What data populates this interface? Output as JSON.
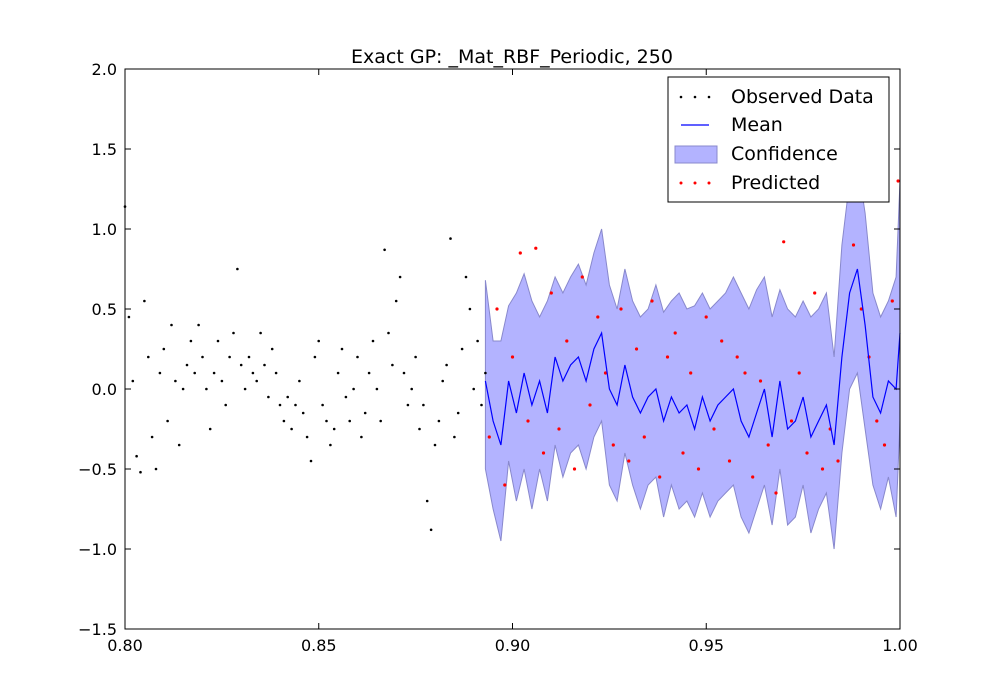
{
  "chart_data": {
    "type": "scatter",
    "title": "Exact GP: _Mat_RBF_Periodic, 250",
    "xlabel": "",
    "ylabel": "",
    "xlim": [
      0.8,
      1.0
    ],
    "ylim": [
      -1.5,
      2.0
    ],
    "x_ticks": [
      "0.80",
      "0.85",
      "0.90",
      "0.95",
      "1.00"
    ],
    "y_ticks": [
      "−1.5",
      "−1.0",
      "−0.5",
      "0.0",
      "0.5",
      "1.0",
      "1.5",
      "2.0"
    ],
    "grid": false,
    "legend_position": "top-right",
    "series": [
      {
        "name": "Observed Data",
        "kind": "points",
        "color": "#000000",
        "x": [
          0.8,
          0.801,
          0.802,
          0.803,
          0.804,
          0.805,
          0.806,
          0.807,
          0.808,
          0.809,
          0.81,
          0.811,
          0.812,
          0.813,
          0.814,
          0.815,
          0.816,
          0.817,
          0.818,
          0.819,
          0.82,
          0.821,
          0.822,
          0.823,
          0.824,
          0.825,
          0.826,
          0.827,
          0.828,
          0.829,
          0.83,
          0.831,
          0.832,
          0.833,
          0.834,
          0.835,
          0.836,
          0.837,
          0.838,
          0.839,
          0.84,
          0.841,
          0.842,
          0.843,
          0.844,
          0.845,
          0.846,
          0.847,
          0.848,
          0.849,
          0.85,
          0.851,
          0.852,
          0.853,
          0.854,
          0.855,
          0.856,
          0.857,
          0.858,
          0.859,
          0.86,
          0.861,
          0.862,
          0.863,
          0.864,
          0.865,
          0.866,
          0.867,
          0.868,
          0.869,
          0.87,
          0.871,
          0.872,
          0.873,
          0.874,
          0.875,
          0.876,
          0.877,
          0.878,
          0.879,
          0.88,
          0.881,
          0.882,
          0.883,
          0.884,
          0.885,
          0.886,
          0.887,
          0.888,
          0.889,
          0.89,
          0.891,
          0.892,
          0.893
        ],
        "y": [
          1.14,
          0.45,
          0.05,
          -0.42,
          -0.52,
          0.55,
          0.2,
          -0.3,
          -0.5,
          0.1,
          0.25,
          -0.2,
          0.4,
          0.05,
          -0.35,
          0.0,
          0.15,
          0.3,
          0.1,
          0.4,
          0.2,
          0.0,
          -0.25,
          0.1,
          0.3,
          0.05,
          -0.1,
          0.2,
          0.35,
          0.75,
          0.15,
          0.0,
          0.2,
          0.1,
          0.05,
          0.35,
          0.15,
          -0.05,
          0.25,
          0.1,
          -0.1,
          -0.2,
          -0.05,
          -0.25,
          -0.1,
          0.05,
          -0.15,
          -0.3,
          -0.45,
          0.2,
          0.3,
          -0.1,
          -0.2,
          -0.35,
          -0.25,
          0.1,
          0.25,
          -0.05,
          -0.2,
          0.0,
          0.2,
          -0.3,
          -0.15,
          0.1,
          0.3,
          0.0,
          -0.2,
          0.87,
          0.35,
          0.15,
          0.55,
          0.7,
          0.1,
          -0.1,
          0.0,
          0.2,
          -0.25,
          -0.1,
          -0.7,
          -0.88,
          -0.35,
          -0.2,
          0.05,
          0.15,
          0.94,
          -0.3,
          -0.15,
          0.25,
          0.7,
          0.5,
          0.0,
          0.3,
          -0.1,
          0.1
        ]
      },
      {
        "name": "Mean",
        "kind": "line",
        "color": "#0000ff",
        "x": [
          0.893,
          0.895,
          0.897,
          0.899,
          0.901,
          0.903,
          0.905,
          0.907,
          0.909,
          0.911,
          0.913,
          0.915,
          0.917,
          0.919,
          0.921,
          0.923,
          0.925,
          0.927,
          0.929,
          0.931,
          0.933,
          0.935,
          0.937,
          0.939,
          0.941,
          0.943,
          0.945,
          0.947,
          0.949,
          0.951,
          0.953,
          0.955,
          0.957,
          0.959,
          0.961,
          0.963,
          0.965,
          0.967,
          0.969,
          0.971,
          0.973,
          0.975,
          0.977,
          0.979,
          0.981,
          0.983,
          0.985,
          0.987,
          0.989,
          0.991,
          0.993,
          0.995,
          0.997,
          0.999,
          1.0
        ],
        "y": [
          0.05,
          -0.2,
          -0.35,
          0.05,
          -0.15,
          0.1,
          -0.1,
          0.05,
          -0.15,
          0.2,
          0.05,
          0.15,
          0.2,
          0.05,
          0.25,
          0.35,
          0.0,
          -0.1,
          0.15,
          -0.05,
          -0.15,
          -0.05,
          0.0,
          -0.2,
          -0.05,
          -0.15,
          -0.1,
          -0.25,
          -0.05,
          -0.2,
          -0.1,
          -0.05,
          0.0,
          -0.2,
          -0.3,
          -0.15,
          0.0,
          -0.3,
          0.05,
          -0.25,
          -0.2,
          -0.05,
          -0.3,
          -0.2,
          -0.1,
          -0.35,
          0.2,
          0.6,
          0.75,
          0.4,
          -0.05,
          -0.15,
          0.05,
          0.0,
          0.35
        ]
      },
      {
        "name": "Confidence",
        "kind": "band",
        "color": "#b3b3ff",
        "x": [
          0.893,
          0.895,
          0.897,
          0.899,
          0.901,
          0.903,
          0.905,
          0.907,
          0.909,
          0.911,
          0.913,
          0.915,
          0.917,
          0.919,
          0.921,
          0.923,
          0.925,
          0.927,
          0.929,
          0.931,
          0.933,
          0.935,
          0.937,
          0.939,
          0.941,
          0.943,
          0.945,
          0.947,
          0.949,
          0.951,
          0.953,
          0.955,
          0.957,
          0.959,
          0.961,
          0.963,
          0.965,
          0.967,
          0.969,
          0.971,
          0.973,
          0.975,
          0.977,
          0.979,
          0.981,
          0.983,
          0.985,
          0.987,
          0.989,
          0.991,
          0.993,
          0.995,
          0.997,
          0.999,
          1.0
        ],
        "upper": [
          0.68,
          0.3,
          0.3,
          0.52,
          0.6,
          0.72,
          0.55,
          0.45,
          0.55,
          0.7,
          0.6,
          0.7,
          0.78,
          0.65,
          0.85,
          1.0,
          0.65,
          0.5,
          0.75,
          0.55,
          0.45,
          0.5,
          0.65,
          0.48,
          0.55,
          0.6,
          0.5,
          0.52,
          0.6,
          0.5,
          0.55,
          0.6,
          0.7,
          0.6,
          0.5,
          0.62,
          0.7,
          0.45,
          0.62,
          0.5,
          0.45,
          0.55,
          0.45,
          0.5,
          0.6,
          0.2,
          0.9,
          1.3,
          1.42,
          1.1,
          0.6,
          0.45,
          0.55,
          0.7,
          1.3
        ],
        "lower": [
          -0.5,
          -0.75,
          -0.95,
          -0.45,
          -0.7,
          -0.5,
          -0.75,
          -0.5,
          -0.7,
          -0.35,
          -0.55,
          -0.4,
          -0.35,
          -0.5,
          -0.3,
          -0.2,
          -0.6,
          -0.7,
          -0.4,
          -0.6,
          -0.75,
          -0.6,
          -0.55,
          -0.8,
          -0.6,
          -0.75,
          -0.7,
          -0.8,
          -0.65,
          -0.8,
          -0.7,
          -0.65,
          -0.6,
          -0.8,
          -0.9,
          -0.75,
          -0.6,
          -0.85,
          -0.5,
          -0.85,
          -0.8,
          -0.6,
          -0.9,
          -0.75,
          -0.65,
          -1.0,
          -0.4,
          0.0,
          0.1,
          -0.25,
          -0.6,
          -0.75,
          -0.55,
          -0.8,
          -0.2
        ]
      },
      {
        "name": "Predicted",
        "kind": "points",
        "color": "#ff0000",
        "x": [
          0.894,
          0.896,
          0.898,
          0.9,
          0.902,
          0.904,
          0.906,
          0.908,
          0.91,
          0.912,
          0.914,
          0.916,
          0.918,
          0.92,
          0.922,
          0.924,
          0.926,
          0.928,
          0.93,
          0.932,
          0.934,
          0.936,
          0.938,
          0.94,
          0.942,
          0.944,
          0.946,
          0.948,
          0.95,
          0.952,
          0.954,
          0.956,
          0.958,
          0.96,
          0.962,
          0.964,
          0.966,
          0.968,
          0.97,
          0.972,
          0.974,
          0.976,
          0.978,
          0.98,
          0.982,
          0.984,
          0.986,
          0.988,
          0.99,
          0.992,
          0.994,
          0.996,
          0.998,
          0.9995
        ],
        "y": [
          -0.3,
          0.5,
          -0.6,
          0.2,
          0.85,
          -0.2,
          0.88,
          -0.4,
          0.6,
          -0.25,
          0.3,
          -0.5,
          0.7,
          -0.1,
          0.45,
          0.1,
          -0.35,
          0.5,
          -0.45,
          0.25,
          -0.3,
          0.55,
          -0.55,
          0.2,
          0.35,
          -0.4,
          0.1,
          -0.5,
          0.45,
          -0.25,
          0.3,
          -0.45,
          0.2,
          0.1,
          -0.55,
          0.05,
          -0.35,
          -0.65,
          0.92,
          -0.2,
          0.1,
          -0.4,
          0.6,
          -0.5,
          -0.25,
          -0.45,
          1.25,
          0.9,
          0.5,
          0.2,
          -0.2,
          -0.35,
          0.55,
          1.3
        ]
      }
    ]
  }
}
